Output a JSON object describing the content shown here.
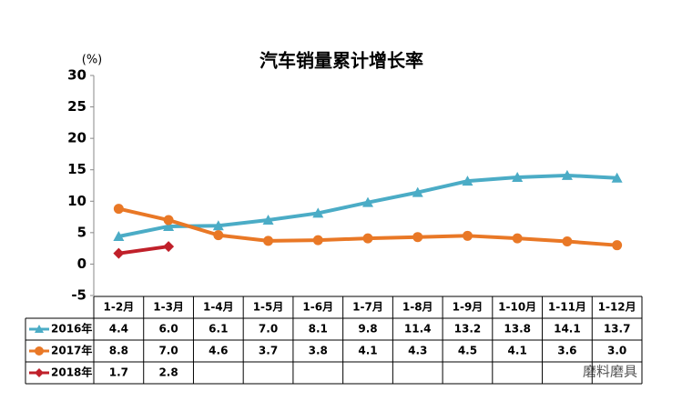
{
  "chart_data": {
    "type": "line",
    "title": "汽车销量累计增长率",
    "y_label": "(%)",
    "categories": [
      "1-2月",
      "1-3月",
      "1-4月",
      "1-5月",
      "1-6月",
      "1-7月",
      "1-8月",
      "1-9月",
      "1-10月",
      "1-11月",
      "1-12月"
    ],
    "series": [
      {
        "name": "2016年",
        "color": "#4bacc6",
        "marker": "triangle",
        "values": [
          4.4,
          6,
          6.1,
          7,
          8.1,
          9.8,
          11.4,
          13.2,
          13.8,
          14.1,
          13.7
        ],
        "value_labels": [
          "4.4",
          "6.0",
          "6.1",
          "7.0",
          "8.1",
          "9.8",
          "11.4",
          "13.2",
          "13.8",
          "14.1",
          "13.7"
        ]
      },
      {
        "name": "2017年",
        "color": "#e97826",
        "marker": "circle",
        "values": [
          8.8,
          7,
          4.6,
          3.7,
          3.8,
          4.1,
          4.3,
          4.5,
          4.1,
          3.6,
          3
        ],
        "value_labels": [
          "8.8",
          "7.0",
          "4.6",
          "3.7",
          "3.8",
          "4.1",
          "4.3",
          "4.5",
          "4.1",
          "3.6",
          "3.0"
        ]
      },
      {
        "name": "2018年",
        "color": "#c0202a",
        "marker": "diamond",
        "values": [
          1.7,
          2.8,
          null,
          null,
          null,
          null,
          null,
          null,
          null,
          null,
          null
        ],
        "value_labels": [
          "1.7",
          "2.8",
          null,
          null,
          null,
          null,
          null,
          null,
          null,
          null,
          null
        ]
      }
    ],
    "ylim": [
      -5,
      30
    ],
    "yticks": [
      -5,
      0,
      5,
      10,
      15,
      20,
      25,
      30
    ],
    "grid": false,
    "watermark": "磨料磨具"
  }
}
